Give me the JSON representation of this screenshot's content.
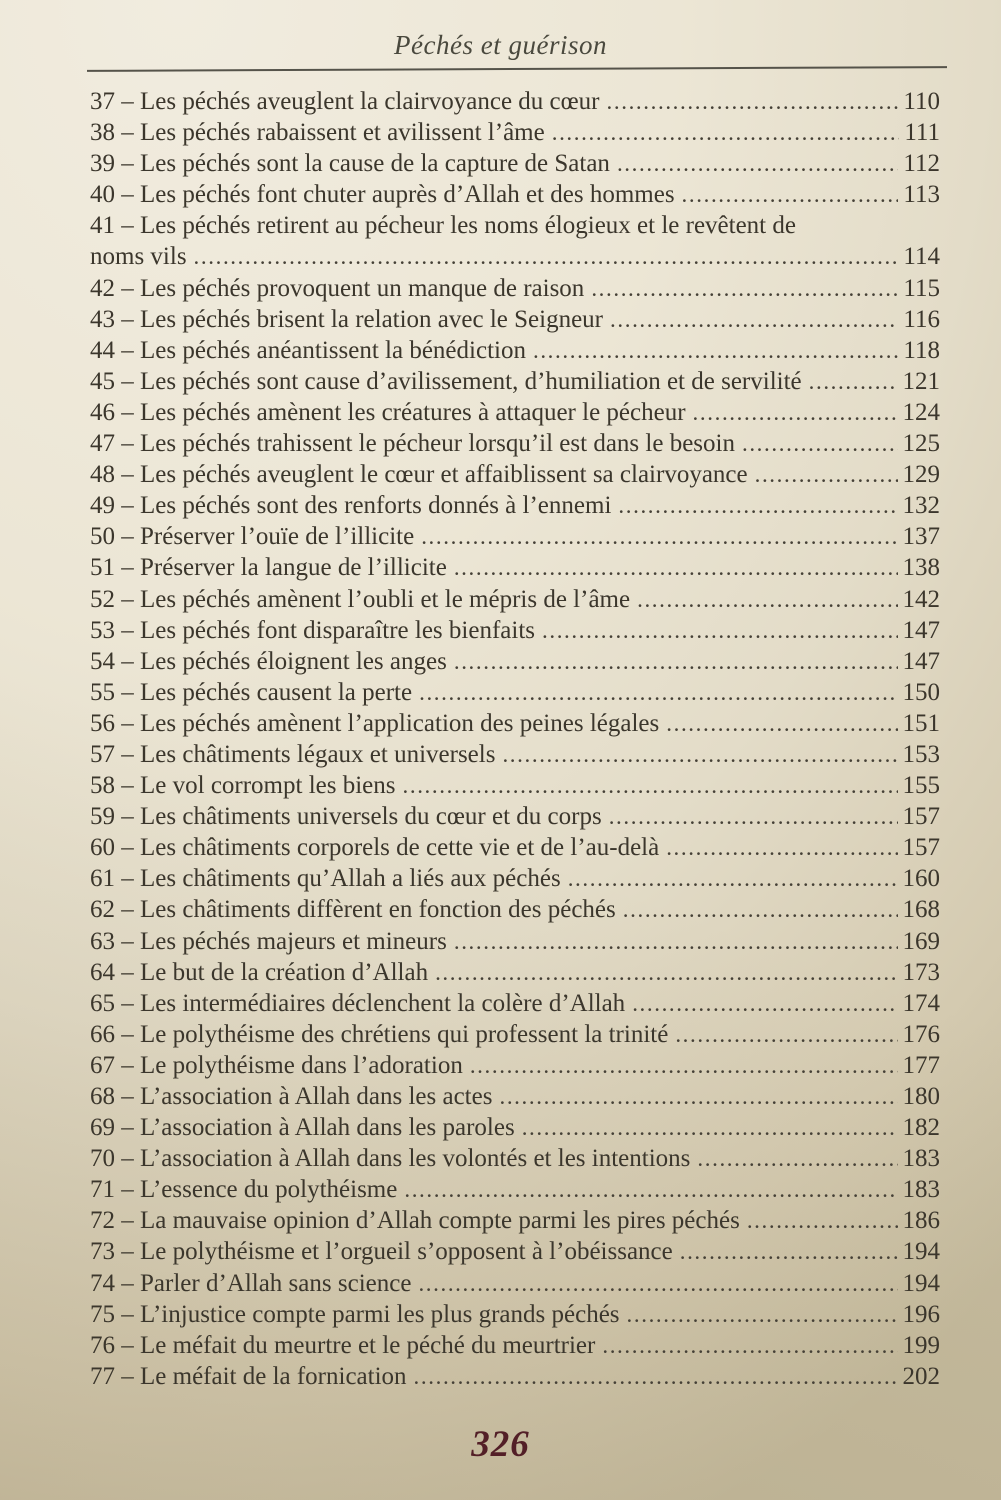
{
  "header": {
    "title": "Péchés et guérison"
  },
  "footer": {
    "page_number": "326"
  },
  "colors": {
    "ink": "#3b362c",
    "paper": "#e9e3d1",
    "folio_ink": "#531f27"
  },
  "toc": {
    "entries": [
      {
        "text": "37 – Les péchés aveuglent la clairvoyance du cœur",
        "page": "110"
      },
      {
        "text": "38 – Les péchés rabaissent et avilissent l’âme",
        "page": "111"
      },
      {
        "text": "39 – Les péchés sont la cause de la capture de Satan",
        "page": "112"
      },
      {
        "text": "40 – Les péchés font chuter auprès d’Allah et des hommes",
        "page": "113"
      },
      {
        "text": "41 – Les péchés retirent au pécheur les noms élogieux et le revêtent de",
        "page": ""
      },
      {
        "text": "noms vils",
        "page": "114"
      },
      {
        "text": "42 – Les péchés provoquent un manque de raison",
        "page": "115"
      },
      {
        "text": "43 – Les péchés brisent la relation avec le Seigneur",
        "page": "116"
      },
      {
        "text": "44 – Les péchés anéantissent la bénédiction",
        "page": "118"
      },
      {
        "text": "45 – Les péchés sont cause d’avilissement, d’humiliation et de servilité",
        "page": "121"
      },
      {
        "text": "46 – Les péchés amènent les créatures à attaquer le pécheur",
        "page": "124"
      },
      {
        "text": "47 – Les péchés trahissent le pécheur lorsqu’il est dans le besoin",
        "page": "125"
      },
      {
        "text": "48 – Les péchés aveuglent le cœur et affaiblissent sa clairvoyance",
        "page": "129"
      },
      {
        "text": "49 – Les péchés sont des renforts donnés à l’ennemi",
        "page": "132"
      },
      {
        "text": "50 – Préserver l’ouïe de l’illicite",
        "page": "137"
      },
      {
        "text": "51 – Préserver la langue de l’illicite",
        "page": "138"
      },
      {
        "text": "52 – Les péchés amènent l’oubli et le mépris de l’âme",
        "page": "142"
      },
      {
        "text": "53 – Les péchés font disparaître les bienfaits",
        "page": "147"
      },
      {
        "text": "54 – Les péchés éloignent les anges",
        "page": "147"
      },
      {
        "text": "55 – Les péchés causent la perte",
        "page": "150"
      },
      {
        "text": "56 – Les péchés amènent l’application des peines légales",
        "page": "151"
      },
      {
        "text": "57 – Les châtiments légaux et universels",
        "page": "153"
      },
      {
        "text": "58 – Le vol corrompt les biens",
        "page": "155"
      },
      {
        "text": "59 – Les châtiments universels du cœur et du corps",
        "page": "157"
      },
      {
        "text": "60 – Les châtiments corporels de cette vie et de l’au-delà",
        "page": "157"
      },
      {
        "text": "61 – Les châtiments qu’Allah a liés aux péchés",
        "page": "160"
      },
      {
        "text": "62 – Les châtiments diffèrent en fonction des péchés",
        "page": "168"
      },
      {
        "text": "63 – Les péchés majeurs et mineurs",
        "page": "169"
      },
      {
        "text": "64 – Le but de la création d’Allah",
        "page": "173"
      },
      {
        "text": "65 – Les intermédiaires déclenchent la colère d’Allah",
        "page": "174"
      },
      {
        "text": "66 – Le polythéisme des chrétiens qui professent la trinité",
        "page": "176"
      },
      {
        "text": "67 – Le polythéisme dans l’adoration",
        "page": "177"
      },
      {
        "text": "68 – L’association à Allah dans les actes",
        "page": "180"
      },
      {
        "text": "69 – L’association à Allah dans les paroles",
        "page": "182"
      },
      {
        "text": "70 – L’association à Allah dans les volontés et les intentions",
        "page": "183"
      },
      {
        "text": "71 – L’essence du polythéisme",
        "page": "183"
      },
      {
        "text": "72 – La mauvaise opinion d’Allah compte parmi les pires péchés",
        "page": "186"
      },
      {
        "text": "73 – Le polythéisme et l’orgueil s’opposent à l’obéissance",
        "page": "194"
      },
      {
        "text": "74 – Parler d’Allah sans science",
        "page": "194"
      },
      {
        "text": "75 – L’injustice compte parmi les plus grands péchés",
        "page": "196"
      },
      {
        "text": "76 – Le méfait du meurtre et le péché du meurtrier",
        "page": "199"
      },
      {
        "text": "77 – Le méfait de la fornication",
        "page": "202"
      }
    ]
  }
}
